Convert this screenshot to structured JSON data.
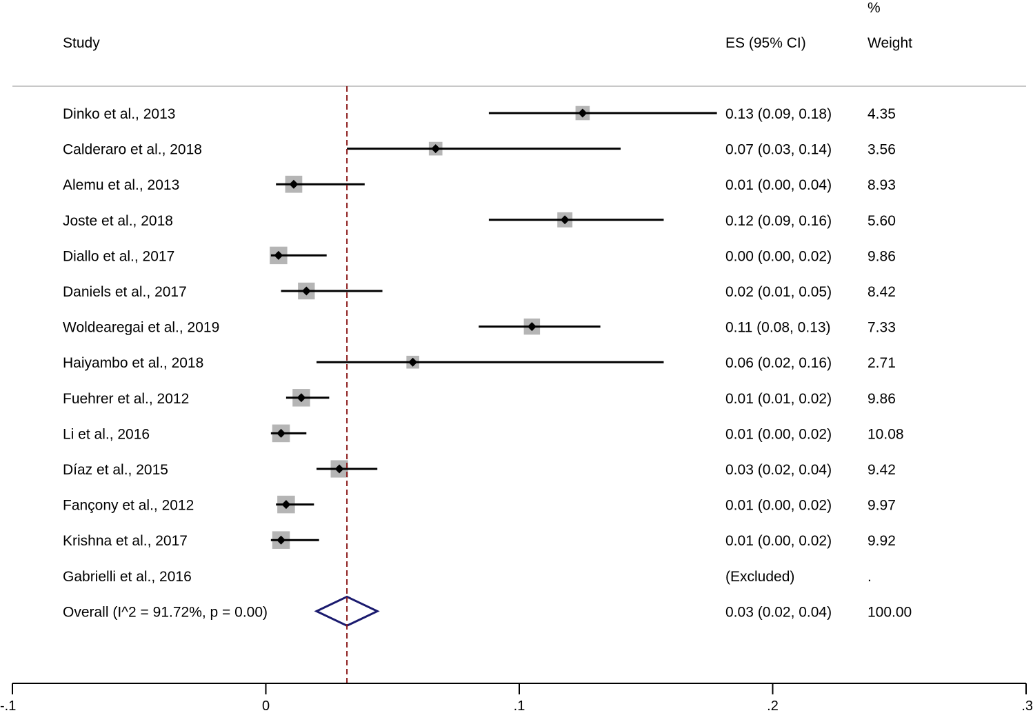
{
  "chart_data": {
    "type": "forest",
    "headers": {
      "study": "Study",
      "es": "ES (95% CI)",
      "weight_top": "%",
      "weight": "Weight"
    },
    "x_axis": {
      "range": [
        -0.1,
        0.3
      ],
      "ticks": [
        -0.1,
        0,
        0.1,
        0.2,
        0.3
      ],
      "tick_labels": [
        "-.1",
        "0",
        ".1",
        ".2",
        ".3"
      ]
    },
    "reference_line": 0.032,
    "colors": {
      "ci_line": "#000000",
      "box": "#b5b5b5",
      "point": "#000000",
      "reference": "#8b1a1a",
      "overall": "#1a1a6e",
      "divider": "#c8c8c8"
    },
    "studies": [
      {
        "label": "Dinko et al., 2013",
        "es": 0.125,
        "lo": 0.088,
        "hi": 0.178,
        "weight": 4.35,
        "es_text": "0.13 (0.09, 0.18)",
        "weight_text": "4.35"
      },
      {
        "label": "Calderaro et al., 2018",
        "es": 0.067,
        "lo": 0.032,
        "hi": 0.14,
        "weight": 3.56,
        "es_text": "0.07 (0.03, 0.14)",
        "weight_text": "3.56"
      },
      {
        "label": "Alemu et al., 2013",
        "es": 0.011,
        "lo": 0.004,
        "hi": 0.039,
        "weight": 8.93,
        "es_text": "0.01 (0.00, 0.04)",
        "weight_text": "8.93"
      },
      {
        "label": "Joste et al., 2018",
        "es": 0.118,
        "lo": 0.088,
        "hi": 0.157,
        "weight": 5.6,
        "es_text": "0.12 (0.09, 0.16)",
        "weight_text": "5.60"
      },
      {
        "label": "Diallo et al., 2017",
        "es": 0.005,
        "lo": 0.002,
        "hi": 0.024,
        "weight": 9.86,
        "es_text": "0.00 (0.00, 0.02)",
        "weight_text": "9.86"
      },
      {
        "label": "Daniels et al., 2017",
        "es": 0.016,
        "lo": 0.006,
        "hi": 0.046,
        "weight": 8.42,
        "es_text": "0.02 (0.01, 0.05)",
        "weight_text": "8.42"
      },
      {
        "label": "Woldearegai et al., 2019",
        "es": 0.105,
        "lo": 0.084,
        "hi": 0.132,
        "weight": 7.33,
        "es_text": "0.11 (0.08, 0.13)",
        "weight_text": "7.33"
      },
      {
        "label": "Haiyambo et al., 2018",
        "es": 0.058,
        "lo": 0.02,
        "hi": 0.157,
        "weight": 2.71,
        "es_text": "0.06 (0.02, 0.16)",
        "weight_text": "2.71"
      },
      {
        "label": "Fuehrer et al., 2012",
        "es": 0.014,
        "lo": 0.008,
        "hi": 0.025,
        "weight": 9.86,
        "es_text": "0.01 (0.01, 0.02)",
        "weight_text": "9.86"
      },
      {
        "label": "Li et al., 2016",
        "es": 0.006,
        "lo": 0.002,
        "hi": 0.016,
        "weight": 10.08,
        "es_text": "0.01 (0.00, 0.02)",
        "weight_text": "10.08"
      },
      {
        "label": "Díaz et al., 2015",
        "es": 0.029,
        "lo": 0.02,
        "hi": 0.044,
        "weight": 9.42,
        "es_text": "0.03 (0.02, 0.04)",
        "weight_text": "9.42"
      },
      {
        "label": "Fançony et al., 2012",
        "es": 0.008,
        "lo": 0.004,
        "hi": 0.019,
        "weight": 9.97,
        "es_text": "0.01 (0.00, 0.02)",
        "weight_text": "9.97"
      },
      {
        "label": "Krishna et al., 2017",
        "es": 0.006,
        "lo": 0.002,
        "hi": 0.021,
        "weight": 9.92,
        "es_text": "0.01 (0.00, 0.02)",
        "weight_text": "9.92"
      },
      {
        "label": "Gabrielli et al., 2016",
        "es": null,
        "lo": null,
        "hi": null,
        "weight": null,
        "es_text": "(Excluded)",
        "weight_text": "."
      }
    ],
    "overall": {
      "label": "Overall  (I^2 = 91.72%, p = 0.00)",
      "es": 0.032,
      "lo": 0.02,
      "hi": 0.044,
      "es_text": "0.03 (0.02, 0.04)",
      "weight_text": "100.00"
    }
  }
}
